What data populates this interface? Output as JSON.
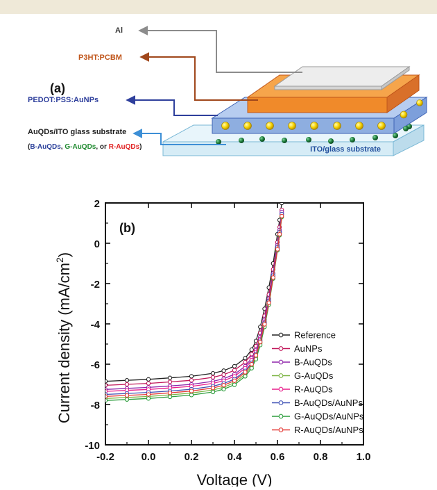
{
  "panel_a": {
    "panel_label": "(a)",
    "labels": {
      "al": "Al",
      "p3ht": "P3HT:PCBM",
      "pedot": "PEDOT:PSS:AuNPs",
      "auqds": "AuQDs/ITO glass substrate",
      "variant_open": "(",
      "variant_b": "B-AuQDs",
      "variant_sep1": ", ",
      "variant_g": "G-AuQDs",
      "variant_sep2": ", or ",
      "variant_r": "R-AuQDs",
      "variant_close": ")",
      "ito": "ITO/glass substrate"
    },
    "colors": {
      "al_arrow": "#8c8c8c",
      "p3ht_text": "#c0561b",
      "p3ht_layer": "#f08a2a",
      "pedot_text": "#2e3f9c",
      "pedot_layer": "#8eaee0",
      "auqds_text": "#222222",
      "auqds_arrow": "#3d8fd6",
      "ito_layer": "#d6ecf6",
      "ito_text": "#1f4d9c",
      "nanoparticle": "#f5d200",
      "quantum_dot": "#1c7a3a",
      "variant_b": "#2a3f9a",
      "variant_g": "#1f8a2f",
      "variant_r": "#e02020"
    }
  },
  "chart_data": {
    "type": "line",
    "panel_label": "(b)",
    "xlabel": "Voltage (V)",
    "ylabel_main": "Current density (mA/cm",
    "ylabel_sup": "2",
    "ylabel_end": ")",
    "xlim": [
      -0.2,
      1.0
    ],
    "ylim": [
      -10,
      2
    ],
    "xticks": [
      -0.2,
      0.0,
      0.2,
      0.4,
      0.6,
      0.8,
      1.0
    ],
    "xtick_labels": [
      "-0.2",
      "0.0",
      "0.2",
      "0.4",
      "0.6",
      "0.8",
      "1.0"
    ],
    "yticks": [
      -10,
      -8,
      -6,
      -4,
      -2,
      0,
      2
    ],
    "ytick_labels": [
      "-10",
      "-8",
      "-6",
      "-4",
      "-2",
      "0",
      "2"
    ],
    "grid": false,
    "legend_position": "bottom-right",
    "x": [
      -0.2,
      -0.1,
      0.0,
      0.1,
      0.2,
      0.3,
      0.35,
      0.4,
      0.45,
      0.48,
      0.5,
      0.52,
      0.54,
      0.56,
      0.58,
      0.6,
      0.61,
      0.62
    ],
    "series": [
      {
        "name": "Reference",
        "color": "#222222",
        "values": [
          -6.85,
          -6.8,
          -6.75,
          -6.68,
          -6.6,
          -6.45,
          -6.32,
          -6.1,
          -5.7,
          -5.28,
          -4.85,
          -4.15,
          -3.25,
          -2.2,
          -1.0,
          0.45,
          1.15,
          2.0
        ]
      },
      {
        "name": "AuNPs",
        "color": "#c2185b",
        "values": [
          -7.05,
          -7.0,
          -6.95,
          -6.88,
          -6.8,
          -6.65,
          -6.52,
          -6.3,
          -5.9,
          -5.5,
          -5.1,
          -4.45,
          -3.6,
          -2.55,
          -1.3,
          0.05,
          0.8,
          1.65
        ]
      },
      {
        "name": "B-AuQDs",
        "color": "#8e24aa",
        "values": [
          -7.25,
          -7.2,
          -7.15,
          -7.08,
          -7.0,
          -6.85,
          -6.72,
          -6.5,
          -6.1,
          -5.7,
          -5.3,
          -4.65,
          -3.8,
          -2.75,
          -1.5,
          -0.1,
          0.65,
          1.55
        ]
      },
      {
        "name": "G-AuQDs",
        "color": "#7cb342",
        "values": [
          -7.7,
          -7.65,
          -7.6,
          -7.52,
          -7.43,
          -7.28,
          -7.14,
          -6.92,
          -6.5,
          -6.1,
          -5.65,
          -4.95,
          -4.05,
          -2.95,
          -1.65,
          -0.25,
          0.5,
          1.4
        ]
      },
      {
        "name": "R-AuQDs",
        "color": "#e91e8c",
        "values": [
          -7.35,
          -7.3,
          -7.25,
          -7.18,
          -7.1,
          -6.95,
          -6.82,
          -6.6,
          -6.2,
          -5.8,
          -5.4,
          -4.75,
          -3.9,
          -2.85,
          -1.6,
          -0.2,
          0.55,
          1.45
        ]
      },
      {
        "name": "B-AuQDs/AuNPs",
        "color": "#3f51b5",
        "values": [
          -7.5,
          -7.45,
          -7.4,
          -7.33,
          -7.24,
          -7.09,
          -6.96,
          -6.74,
          -6.33,
          -5.93,
          -5.5,
          -4.83,
          -3.95,
          -2.87,
          -1.6,
          -0.2,
          0.55,
          1.45
        ]
      },
      {
        "name": "G-AuQDs/AuNPs",
        "color": "#2e9e3e",
        "values": [
          -7.8,
          -7.75,
          -7.7,
          -7.62,
          -7.53,
          -7.38,
          -7.24,
          -7.02,
          -6.6,
          -6.2,
          -5.75,
          -5.05,
          -4.15,
          -3.05,
          -1.75,
          -0.35,
          0.4,
          1.3
        ]
      },
      {
        "name": "R-AuQDs/AuNPs",
        "color": "#e53935",
        "values": [
          -7.6,
          -7.55,
          -7.5,
          -7.42,
          -7.33,
          -7.18,
          -7.04,
          -6.82,
          -6.4,
          -6.0,
          -5.56,
          -4.9,
          -4.02,
          -2.95,
          -1.7,
          -0.3,
          0.45,
          1.35
        ]
      }
    ]
  }
}
